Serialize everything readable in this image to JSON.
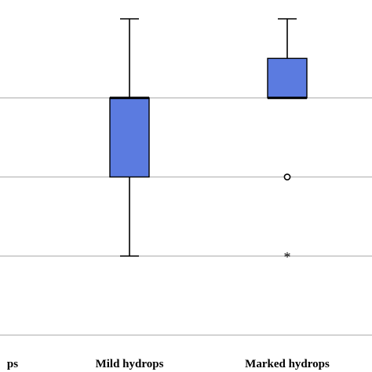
{
  "chart_data": {
    "type": "box",
    "categories": [
      "ps",
      "Mild hydrops",
      "Marked hydrops"
    ],
    "ylim": [
      0,
      4
    ],
    "grid": true,
    "yticks": [
      0,
      1,
      2,
      3,
      4
    ],
    "series": [
      {
        "boxes": [
          {
            "category": "Mild hydrops",
            "min": 1,
            "q1": 2,
            "median": 3,
            "q3": 3,
            "max": 4,
            "outliers": [],
            "extremes": []
          },
          {
            "category": "Marked hydrops",
            "min": 3,
            "q1": 3,
            "median": 3,
            "q3": 3.5,
            "max": 4,
            "outliers": [
              2
            ],
            "extremes": [
              1
            ]
          }
        ]
      }
    ],
    "box_color": "#5b7be0"
  }
}
